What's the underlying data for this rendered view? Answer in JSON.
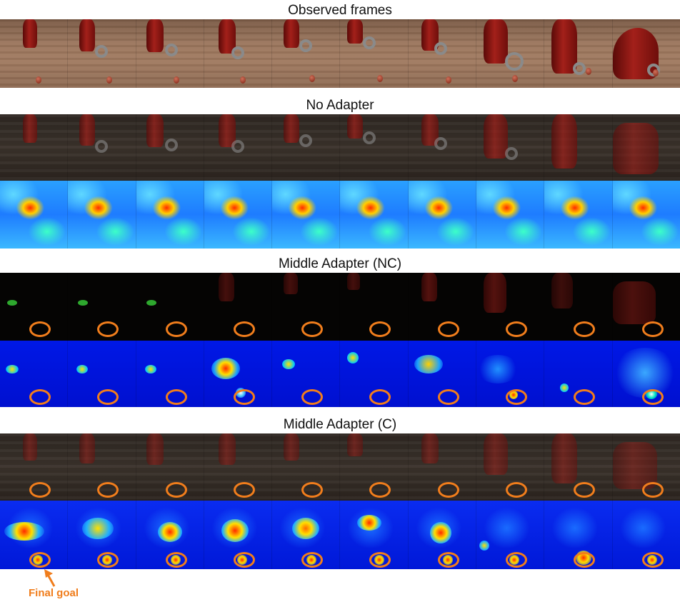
{
  "titles": {
    "observed": "Observed frames",
    "no_adapter": "No Adapter",
    "middle_nc": "Middle Adapter (NC)",
    "middle_c": "Middle Adapter (C)"
  },
  "annotation": {
    "final_goal": "Final goal"
  },
  "colors": {
    "accent": "#f07d1c",
    "robot": "#a3201a",
    "heat_low": "#0010d0",
    "heat_high": "#ff2a00"
  }
}
